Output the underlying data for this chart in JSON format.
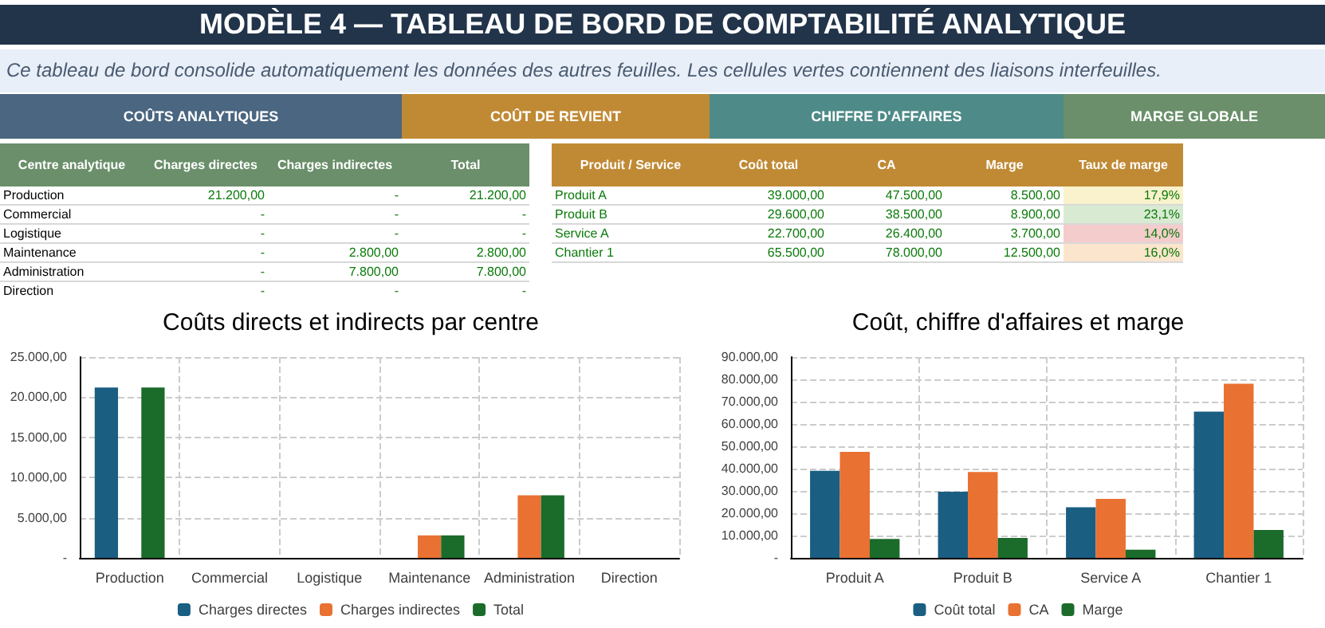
{
  "chart_data": [
    {
      "type": "other",
      "title": "MODÈLE 4 — TABLEAU DE BORD DE COMPTABILITÉ ANALYTIQUE",
      "subtitle": "Ce tableau de bord consolide automatiquement les données des autres feuilles. Les cellules vertes contiennent des liaisons interfeuilles.",
      "annotations": [
        "COÛTS ANALYTIQUES",
        "COÛT DE REVIENT",
        "CHIFFRE D'AFFAIRES",
        "MARGE GLOBALE",
        "Centre analytique",
        "Charges directes",
        "Charges indirectes",
        "Total",
        "Production",
        "21.200,00",
        "-",
        "21.200,00",
        "Commercial",
        "-",
        "-",
        "-",
        "Logistique",
        "-",
        "-",
        "-",
        "Maintenance",
        "-",
        "2.800,00",
        "2.800,00",
        "Administration",
        "-",
        "7.800,00",
        "7.800,00",
        "Direction",
        "-",
        "-",
        "-",
        "Produit / Service",
        "Coût total",
        "CA",
        "Marge",
        "Taux de marge",
        "Produit A",
        "39.000,00",
        "47.500,00",
        "8.500,00",
        "17,9%",
        "Produit B",
        "29.600,00",
        "38.500,00",
        "8.900,00",
        "23,1%",
        "Service A",
        "22.700,00",
        "26.400,00",
        "3.700,00",
        "14,0%",
        "Chantier 1",
        "65.500,00",
        "78.000,00",
        "12.500,00",
        "16,0%"
      ]
    },
    {
      "type": "bar",
      "title": "Coûts directs et indirects par centre",
      "categories": [
        "Production",
        "Commercial",
        "Logistique",
        "Maintenance",
        "Administration",
        "Direction"
      ],
      "series": [
        {
          "name": "Charges directes",
          "color": "#1a5e82",
          "values": [
            21200,
            0,
            0,
            0,
            0,
            0
          ]
        },
        {
          "name": "Charges indirectes",
          "color": "#e97132",
          "values": [
            0,
            0,
            0,
            2800,
            7800,
            0
          ]
        },
        {
          "name": "Total",
          "color": "#1b6b2a",
          "values": [
            21200,
            0,
            0,
            2800,
            7800,
            0
          ]
        }
      ],
      "ylim": [
        0,
        25000
      ],
      "yticks": [
        {
          "value": 0,
          "label": "-"
        },
        {
          "value": 5000,
          "label": "5.000,00"
        },
        {
          "value": 10000,
          "label": "10.000,00"
        },
        {
          "value": 15000,
          "label": "15.000,00"
        },
        {
          "value": 20000,
          "label": "20.000,00"
        },
        {
          "value": 25000,
          "label": "25.000,00"
        }
      ],
      "grid": true,
      "legend": "bottom"
    },
    {
      "type": "bar",
      "title": "Coût, chiffre d'affaires et marge",
      "categories": [
        "Produit A",
        "Produit B",
        "Service A",
        "Chantier 1"
      ],
      "series": [
        {
          "name": "Coût total",
          "color": "#1a5e82",
          "values": [
            39000,
            29600,
            22700,
            65500
          ]
        },
        {
          "name": "CA",
          "color": "#e97132",
          "values": [
            47500,
            38500,
            26400,
            78000
          ]
        },
        {
          "name": "Marge",
          "color": "#1b6b2a",
          "values": [
            8500,
            8900,
            3700,
            12500
          ]
        }
      ],
      "ylim": [
        0,
        90000
      ],
      "yticks": [
        {
          "value": 0,
          "label": "-"
        },
        {
          "value": 10000,
          "label": "10.000,00"
        },
        {
          "value": 20000,
          "label": "20.000,00"
        },
        {
          "value": 30000,
          "label": "30.000,00"
        },
        {
          "value": 40000,
          "label": "40.000,00"
        },
        {
          "value": 50000,
          "label": "50.000,00"
        },
        {
          "value": 60000,
          "label": "60.000,00"
        },
        {
          "value": 70000,
          "label": "70.000,00"
        },
        {
          "value": 80000,
          "label": "80.000,00"
        },
        {
          "value": 90000,
          "label": "90.000,00"
        }
      ],
      "grid": true,
      "legend": "bottom"
    }
  ]
}
